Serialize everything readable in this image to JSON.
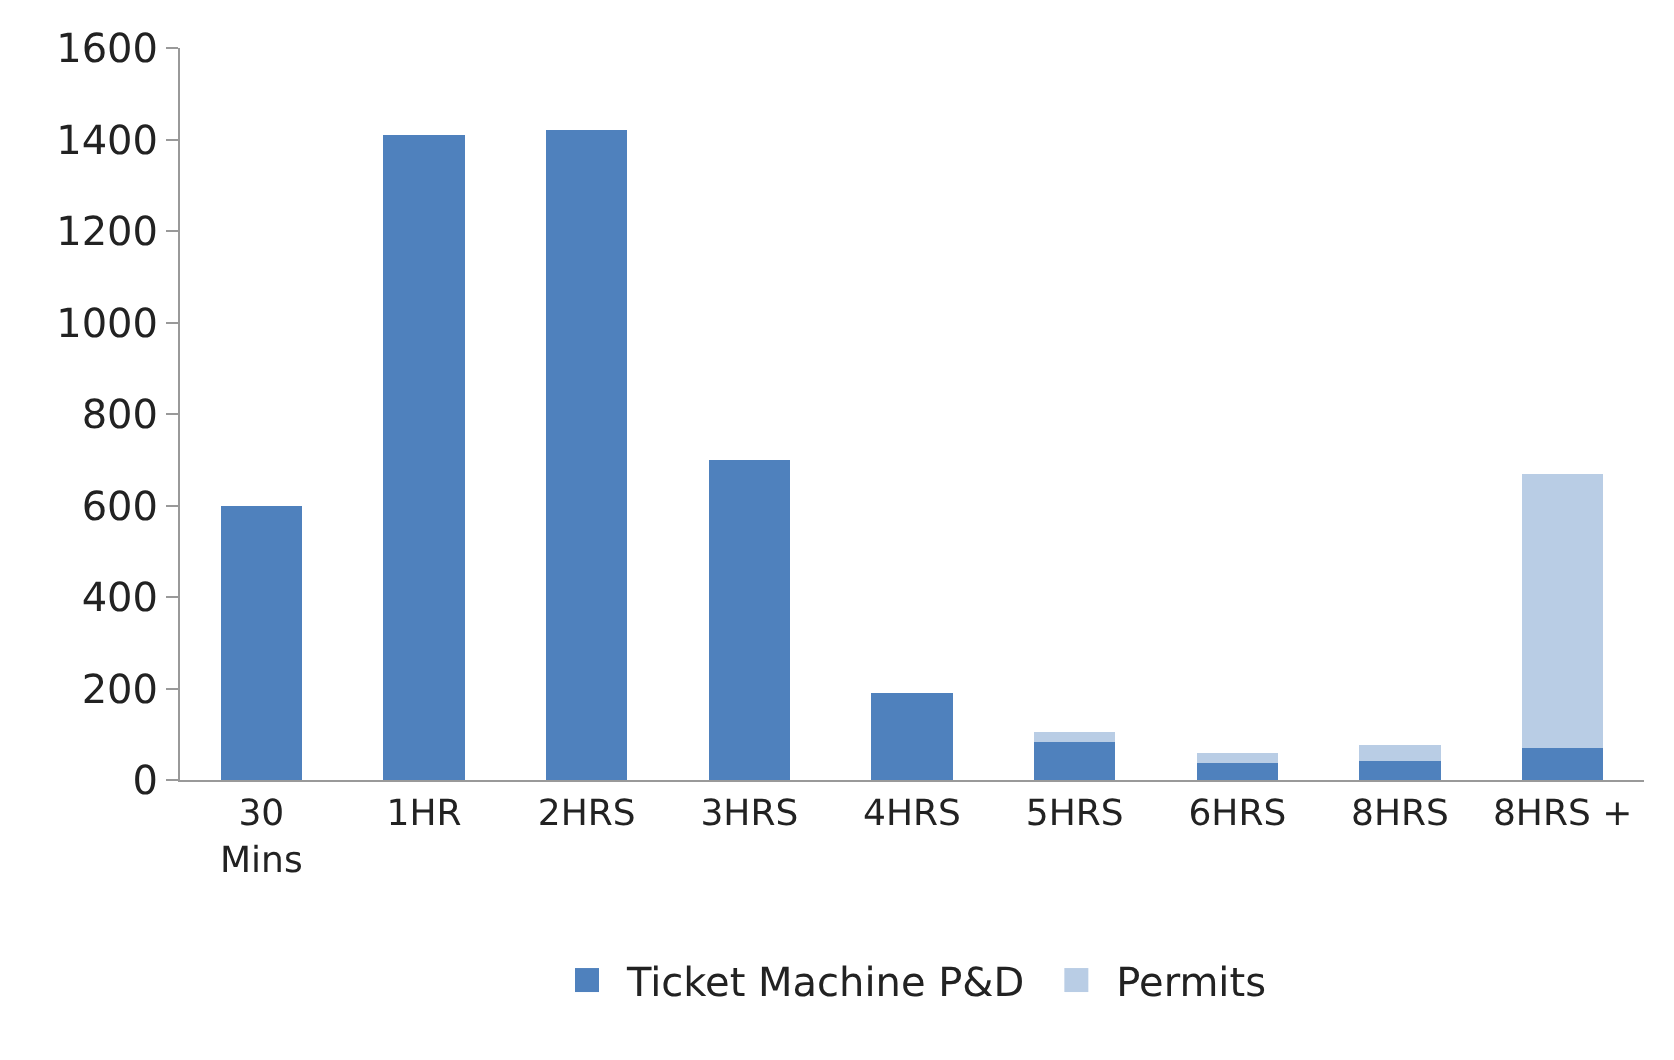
{
  "chart_data": {
    "type": "bar",
    "stacked": true,
    "categories": [
      "30\nMins",
      "1HR",
      "2HRS",
      "3HRS",
      "4HRS",
      "5HRS",
      "6HRS",
      "8HRS",
      "8HRS +"
    ],
    "series": [
      {
        "name": "Ticket Machine P&D",
        "color": "#4f81bd",
        "values": [
          600,
          1410,
          1420,
          700,
          190,
          83,
          38,
          42,
          71
        ]
      },
      {
        "name": "Permits",
        "color": "#b9cde5",
        "values": [
          null,
          null,
          null,
          null,
          null,
          22,
          20,
          35,
          597
        ]
      }
    ],
    "ylim": [
      0,
      1600
    ],
    "yticks": [
      0,
      200,
      400,
      600,
      800,
      1000,
      1200,
      1400,
      1600
    ],
    "legend": "bottom"
  }
}
